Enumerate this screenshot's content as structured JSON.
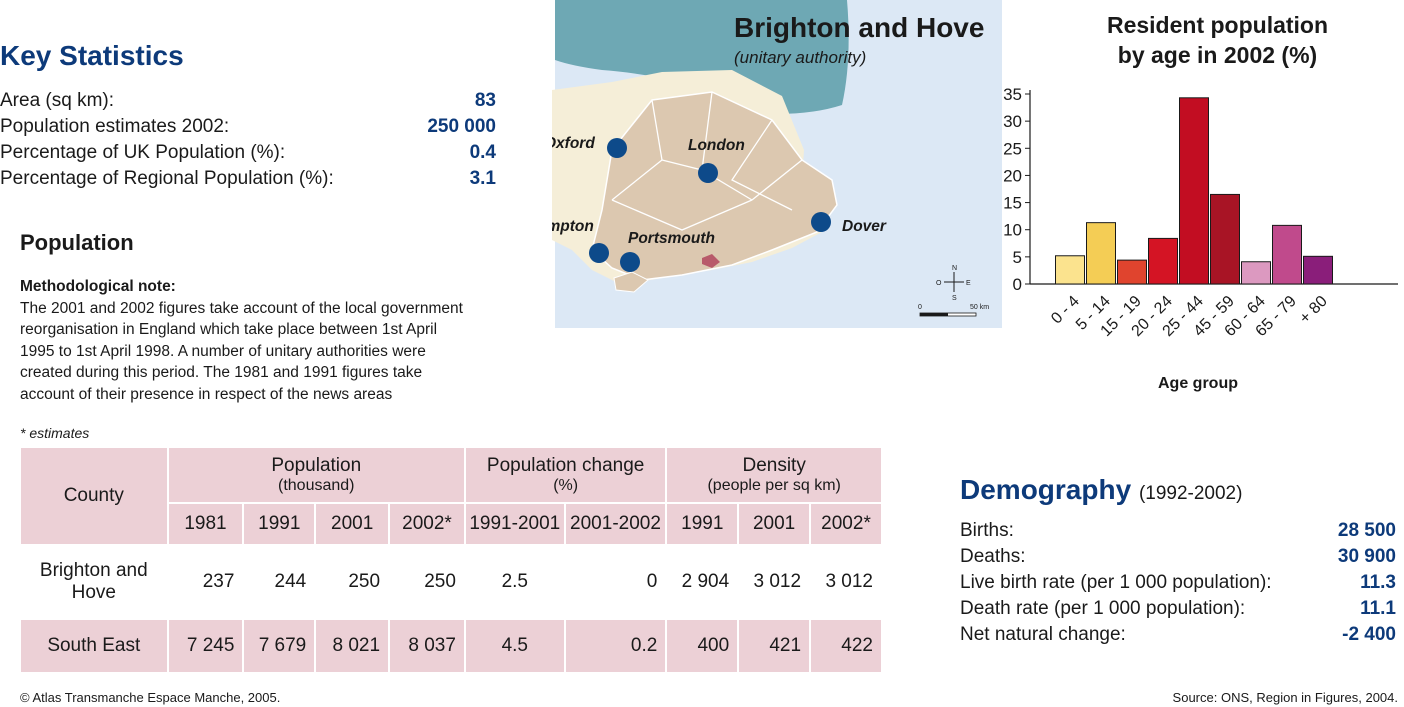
{
  "key_statistics": {
    "title": "Key Statistics",
    "rows": [
      {
        "label": "Area (sq km):",
        "value": "83"
      },
      {
        "label": "Population estimates 2002:",
        "value": "250 000"
      },
      {
        "label": "Percentage of UK Population (%):",
        "value": "0.4"
      },
      {
        "label": "Percentage of Regional Population (%):",
        "value": "3.1"
      }
    ]
  },
  "population": {
    "title": "Population",
    "note_heading": "Methodological note:",
    "note_line1": "The 2001 and 2002 figures take account of the local government",
    "note_line2": "reorganisation in England which take place between 1st April",
    "note_line3": "1995 to 1st April 1998. A number of unitary authorities were",
    "note_line4": "created during this period. The 1981 and 1991 figures take",
    "note_line5": "account of their presence in respect of the news areas",
    "estimates_note": "* estimates"
  },
  "table": {
    "county_header": "County",
    "pop_header": "Population",
    "pop_sub": "(thousand)",
    "change_header": "Population change",
    "change_sub": "(%)",
    "density_header": "Density",
    "density_sub": "(people per sq km)",
    "years": [
      "1981",
      "1991",
      "2001",
      "2002*",
      "1991-2001",
      "2001-2002",
      "1991",
      "2001",
      "2002*"
    ],
    "rows": [
      {
        "county": "Brighton and Hove",
        "cells": [
          "237",
          "244",
          "250",
          "250",
          "2.5",
          "0",
          "2 904",
          "3 012",
          "3 012"
        ]
      },
      {
        "county": "South East",
        "cells": [
          "7 245",
          "7 679",
          "8 021",
          "8 037",
          "4.5",
          "0.2",
          "400",
          "421",
          "422"
        ]
      }
    ]
  },
  "map": {
    "title": "Brighton and Hove",
    "subtitle": "(unitary authority)",
    "cities": [
      "Oxford",
      "London",
      "Southampton",
      "Portsmouth",
      "Dover"
    ],
    "scale_start": "0",
    "scale_end": "50 km",
    "compass": {
      "n": "N",
      "s": "S",
      "e": "E",
      "w": "O"
    },
    "colors": {
      "sea": "#dce8f5",
      "france": "#6ea8b4",
      "region": "#dcc8b0",
      "land": "#f5eed8",
      "highlight": "#b85a6a",
      "city": "#0d4a8a"
    }
  },
  "chart_data": {
    "type": "bar",
    "title_line1": "Resident population",
    "title_line2": "by age in 2002 (%)",
    "xlabel": "Age group",
    "ylabel": "",
    "categories": [
      "0 - 4",
      "5 - 14",
      "15 - 19",
      "20 - 24",
      "25 - 44",
      "45 - 59",
      "60 - 64",
      "65 - 79",
      "+ 80"
    ],
    "values": [
      5.2,
      11.3,
      4.4,
      8.4,
      34.3,
      16.5,
      4.1,
      10.8,
      5.1
    ],
    "colors": [
      "#fbe38e",
      "#f4cd55",
      "#e0442e",
      "#d41424",
      "#c20d22",
      "#a81425",
      "#dc99c0",
      "#c04a8c",
      "#8a1e7a"
    ],
    "ylim": [
      0,
      35
    ],
    "yticks": [
      0,
      5,
      10,
      15,
      20,
      25,
      30,
      35
    ],
    "grid": false
  },
  "demography": {
    "title": "Demography",
    "period": "(1992-2002)",
    "rows": [
      {
        "label": "Births:",
        "value": "28 500"
      },
      {
        "label": "Deaths:",
        "value": "30 900"
      },
      {
        "label": "Live birth rate (per 1 000 population):",
        "value": "11.3"
      },
      {
        "label": "Death rate (per 1 000 population):",
        "value": "11.1"
      },
      {
        "label": "Net natural change:",
        "value": "-2 400"
      }
    ]
  },
  "footer": {
    "copyright": "© Atlas Transmanche Espace Manche, 2005.",
    "source": "Source: ONS, Region in Figures, 2004."
  }
}
